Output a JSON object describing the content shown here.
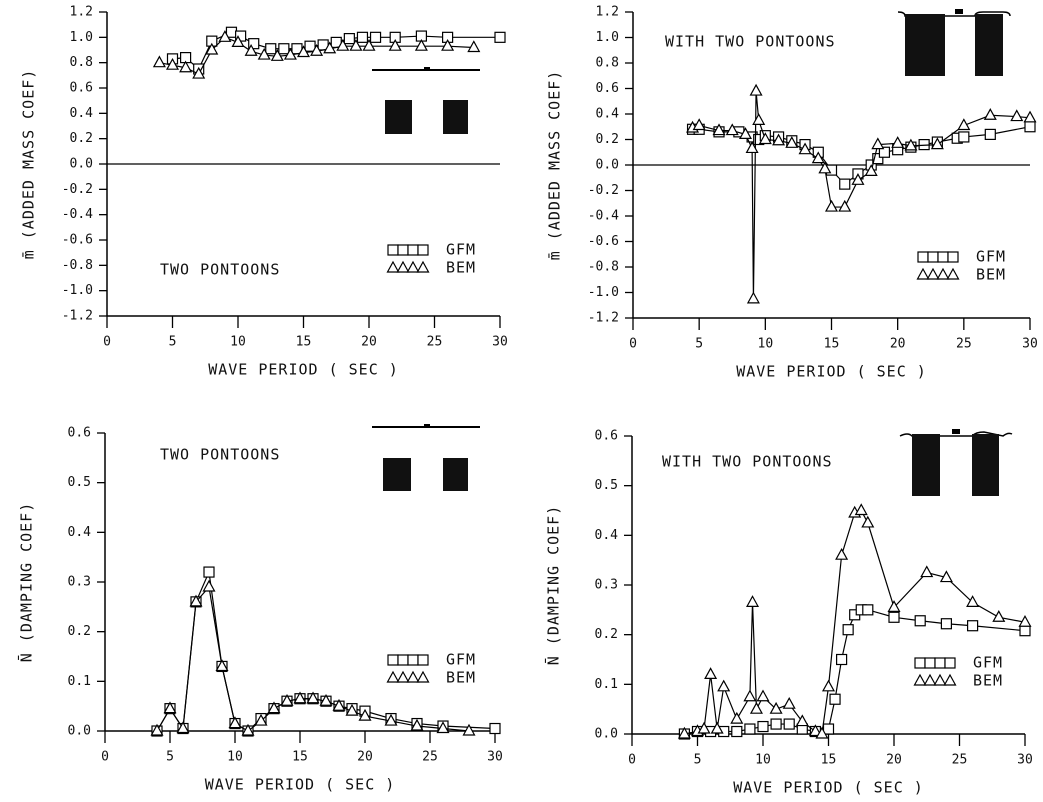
{
  "chart_data": [
    {
      "type": "line",
      "annotation": "TWO PONTOONS",
      "xlabel": "WAVE PERIOD ( SEC )",
      "ylabel": "m̄ (ADDED MASS COEF)",
      "xlim": [
        0,
        30
      ],
      "xticks": [
        0,
        5,
        10,
        15,
        20,
        25,
        30
      ],
      "ylim": [
        -1.2,
        1.2
      ],
      "yticks": [
        -1.2,
        {
          "value": -1,
          "label": "-1.0"
        },
        -0.8,
        -0.6,
        -0.4,
        -0.2,
        {
          "value": 0,
          "label": "0.0"
        },
        0.2,
        0.4,
        0.6,
        0.8,
        {
          "value": 1,
          "label": "1.0"
        },
        1.2
      ],
      "reference_line": 0,
      "series": [
        {
          "name": "GFM",
          "marker": "square",
          "color": "#000000",
          "x": [
            5,
            6,
            7,
            8,
            9.5,
            10.2,
            11.2,
            12.5,
            13.5,
            14.5,
            15.5,
            16.5,
            17.5,
            18.5,
            19.5,
            20.5,
            22,
            24,
            26,
            30
          ],
          "values": [
            0.83,
            0.84,
            0.75,
            0.97,
            1.04,
            1.01,
            0.95,
            0.91,
            0.91,
            0.91,
            0.93,
            0.94,
            0.96,
            0.99,
            1.0,
            1.0,
            1.0,
            1.01,
            1.0,
            1.0
          ]
        },
        {
          "name": "BEM",
          "marker": "triangle",
          "color": "#000000",
          "x": [
            4,
            5,
            6,
            7,
            8,
            9,
            10,
            11,
            12,
            13,
            14,
            15,
            16,
            17,
            18,
            19,
            20,
            22,
            24,
            26,
            28
          ],
          "values": [
            0.8,
            0.78,
            0.76,
            0.71,
            0.9,
            1.0,
            0.96,
            0.89,
            0.86,
            0.85,
            0.86,
            0.88,
            0.89,
            0.91,
            0.93,
            0.93,
            0.93,
            0.93,
            0.93,
            0.93,
            0.92
          ]
        }
      ]
    },
    {
      "type": "line",
      "annotation": "WITH TWO PONTOONS",
      "xlabel": "WAVE PERIOD ( SEC )",
      "ylabel": "m̄ (ADDED MASS COEF)",
      "xlim": [
        0,
        30
      ],
      "xticks": [
        0,
        5,
        10,
        15,
        20,
        25,
        30
      ],
      "ylim": [
        -1.2,
        1.2
      ],
      "yticks": [
        -1.2,
        {
          "value": -1,
          "label": "-1.0"
        },
        -0.8,
        -0.6,
        -0.4,
        -0.2,
        {
          "value": 0,
          "label": "0.0"
        },
        0.2,
        0.4,
        0.6,
        0.8,
        {
          "value": 1,
          "label": "1.0"
        },
        1.2
      ],
      "reference_line": 0,
      "series": [
        {
          "name": "GFM",
          "marker": "square",
          "color": "#000000",
          "x": [
            4.5,
            5,
            6.5,
            8,
            9,
            9.5,
            10,
            11,
            12,
            13,
            14,
            15,
            16,
            17,
            18,
            18.5,
            19,
            20,
            21,
            22,
            23,
            24.5,
            25,
            27,
            30
          ],
          "values": [
            0.28,
            0.28,
            0.26,
            0.26,
            0.22,
            0.2,
            0.23,
            0.22,
            0.19,
            0.16,
            0.1,
            -0.04,
            -0.15,
            -0.07,
            0.0,
            0.05,
            0.1,
            0.12,
            0.14,
            0.16,
            0.18,
            0.21,
            0.22,
            0.24,
            0.3
          ]
        },
        {
          "name": "BEM",
          "marker": "triangle",
          "color": "#000000",
          "x": [
            4.5,
            5,
            6.5,
            7.5,
            8.5,
            9,
            9.1,
            9.3,
            9.5,
            10,
            11,
            12,
            13,
            14,
            14.5,
            15,
            16,
            17,
            18,
            18.5,
            20,
            21,
            23,
            25,
            27,
            29,
            30
          ],
          "values": [
            0.29,
            0.31,
            0.27,
            0.27,
            0.24,
            0.13,
            -1.05,
            0.58,
            0.35,
            0.2,
            0.19,
            0.17,
            0.12,
            0.05,
            -0.03,
            -0.33,
            -0.33,
            -0.12,
            -0.05,
            0.16,
            0.17,
            0.15,
            0.16,
            0.31,
            0.39,
            0.38,
            0.37
          ]
        }
      ]
    },
    {
      "type": "line",
      "annotation": "TWO PONTOONS",
      "xlabel": "WAVE PERIOD ( SEC )",
      "ylabel": "N̄ (DAMPING COEF)",
      "xlim": [
        0,
        30
      ],
      "xticks": [
        0,
        5,
        10,
        15,
        20,
        25,
        30
      ],
      "ylim": [
        0,
        0.6
      ],
      "yticks": [
        {
          "value": 0,
          "label": "0.0"
        },
        0.1,
        0.2,
        0.3,
        0.4,
        0.5,
        0.6
      ],
      "series": [
        {
          "name": "GFM",
          "marker": "square",
          "color": "#000000",
          "x": [
            4,
            5,
            6,
            7,
            8,
            9,
            10,
            11,
            12,
            13,
            14,
            15,
            16,
            17,
            18,
            19,
            20,
            22,
            24,
            26,
            30
          ],
          "values": [
            0,
            0.045,
            0.005,
            0.26,
            0.32,
            0.13,
            0.015,
            0,
            0.025,
            0.045,
            0.06,
            0.065,
            0.065,
            0.06,
            0.05,
            0.045,
            0.04,
            0.025,
            0.015,
            0.01,
            0.005
          ]
        },
        {
          "name": "BEM",
          "marker": "triangle",
          "color": "#000000",
          "x": [
            4,
            5,
            6,
            7,
            8,
            9,
            10,
            11,
            12,
            13,
            14,
            15,
            16,
            17,
            18,
            19,
            20,
            22,
            24,
            26,
            28
          ],
          "values": [
            0,
            0.045,
            0.005,
            0.26,
            0.29,
            0.13,
            0.015,
            0,
            0.02,
            0.045,
            0.06,
            0.065,
            0.065,
            0.06,
            0.05,
            0.04,
            0.03,
            0.02,
            0.01,
            0.005,
            0
          ]
        }
      ]
    },
    {
      "type": "line",
      "annotation": "WITH TWO PONTOONS",
      "xlabel": "WAVE PERIOD ( SEC )",
      "ylabel": "N̄ (DAMPING COEF)",
      "xlim": [
        0,
        30
      ],
      "xticks": [
        0,
        5,
        10,
        15,
        20,
        25,
        30
      ],
      "ylim": [
        0,
        0.6
      ],
      "yticks": [
        {
          "value": 0,
          "label": "0.0"
        },
        0.1,
        0.2,
        0.3,
        0.4,
        0.5,
        0.6
      ],
      "series": [
        {
          "name": "GFM",
          "marker": "square",
          "color": "#000000",
          "x": [
            4,
            5,
            6,
            7,
            8,
            9,
            10,
            11,
            12,
            13,
            14,
            15,
            15.5,
            16,
            16.5,
            17,
            17.5,
            18,
            20,
            22,
            24,
            26,
            30
          ],
          "values": [
            0,
            0.005,
            0.005,
            0.005,
            0.005,
            0.01,
            0.015,
            0.02,
            0.02,
            0.01,
            0.005,
            0.01,
            0.07,
            0.15,
            0.21,
            0.24,
            0.25,
            0.25,
            0.235,
            0.228,
            0.222,
            0.218,
            0.208
          ]
        },
        {
          "name": "BEM",
          "marker": "triangle",
          "color": "#000000",
          "x": [
            4,
            5,
            5.5,
            6,
            6.5,
            7,
            8,
            9,
            9.2,
            9.5,
            10,
            11,
            12,
            13,
            14,
            14.5,
            15,
            16,
            17,
            17.5,
            18,
            20,
            22.5,
            24,
            26,
            28,
            30
          ],
          "values": [
            0,
            0.005,
            0.01,
            0.12,
            0.01,
            0.095,
            0.03,
            0.075,
            0.265,
            0.05,
            0.075,
            0.05,
            0.06,
            0.025,
            0.005,
            0,
            0.095,
            0.36,
            0.445,
            0.45,
            0.425,
            0.255,
            0.325,
            0.315,
            0.265,
            0.235,
            0.225
          ]
        }
      ]
    }
  ]
}
